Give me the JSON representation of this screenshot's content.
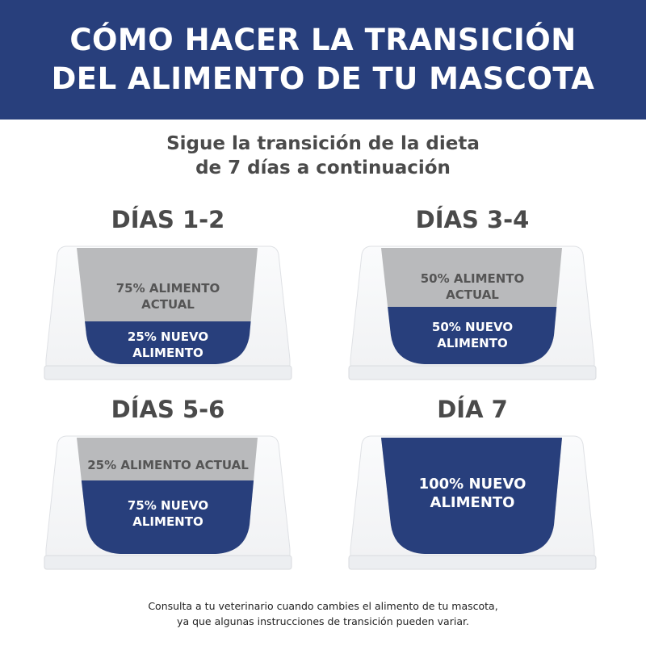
{
  "header": {
    "line1": "CÓMO HACER LA TRANSICIÓN",
    "line2": "DEL ALIMENTO DE TU MASCOTA"
  },
  "subtitle": {
    "line1": "Sigue la transición de la dieta",
    "line2": "de  7 días a continuación"
  },
  "colors": {
    "brand_blue": "#283f7c",
    "current_food_gray": "#b9babc",
    "bowl_white": "#f1f2f4"
  },
  "stages": [
    {
      "title": "DÍAS 1-2",
      "new_fraction": 0.25,
      "current_label": "75% ALIMENTO ACTUAL",
      "current_l1": "75% ALIMENTO",
      "current_l2": "ACTUAL",
      "new_l1": "25% NUEVO",
      "new_l2": "ALIMENTO"
    },
    {
      "title": "DÍAS 3-4",
      "new_fraction": 0.5,
      "current_l1": "50% ALIMENTO",
      "current_l2": "ACTUAL",
      "new_l1": "50% NUEVO",
      "new_l2": "ALIMENTO"
    },
    {
      "title": "DÍAS 5-6",
      "new_fraction": 0.75,
      "current_l1": "25% ALIMENTO ACTUAL",
      "new_l1": "75% NUEVO",
      "new_l2": "ALIMENTO"
    },
    {
      "title": "DÍA 7",
      "new_fraction": 1.0,
      "new_l1": "100% NUEVO",
      "new_l2": "ALIMENTO"
    }
  ],
  "footer": {
    "line1": "Consulta a tu veterinario cuando cambies el alimento de tu mascota,",
    "line2": "ya que algunas instrucciones de transición pueden variar."
  }
}
